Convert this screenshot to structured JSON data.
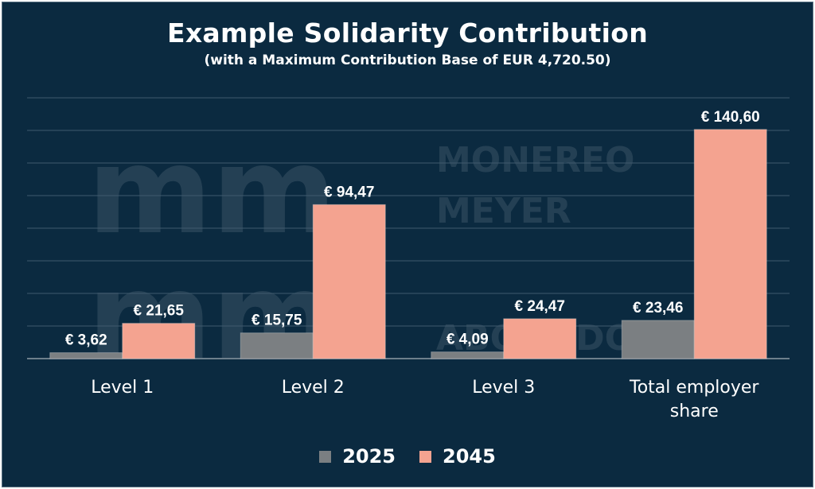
{
  "chart_data": {
    "type": "bar",
    "title": "Example Solidarity Contribution",
    "subtitle": "(with a Maximum Contribution Base of EUR 4,720.50)",
    "categories": [
      "Level 1",
      "Level 2",
      "Level 3",
      "Total employer share"
    ],
    "series": [
      {
        "name": "2025",
        "values": [
          3.62,
          15.75,
          4.09,
          23.46
        ],
        "labels": [
          "€ 3,62",
          "€ 15,75",
          "€ 4,09",
          "€ 23,46"
        ],
        "color": "#7b7f82"
      },
      {
        "name": "2045",
        "values": [
          21.65,
          94.47,
          24.47,
          140.6
        ],
        "labels": [
          "€ 21,65",
          "€ 94,47",
          "€ 24,47",
          "€ 140,60"
        ],
        "color": "#f4a390"
      }
    ],
    "ylim": [
      0,
      160
    ],
    "grid": true,
    "legend_position": "bottom"
  },
  "watermark": {
    "logo": "mm",
    "lines": [
      "MONEREO",
      "MEYER",
      "ABOGADOS"
    ]
  },
  "colors": {
    "background": "#0b2a40",
    "gridline": "#3f5a6e",
    "axis": "#6d7f8c",
    "text": "#ffffff"
  }
}
